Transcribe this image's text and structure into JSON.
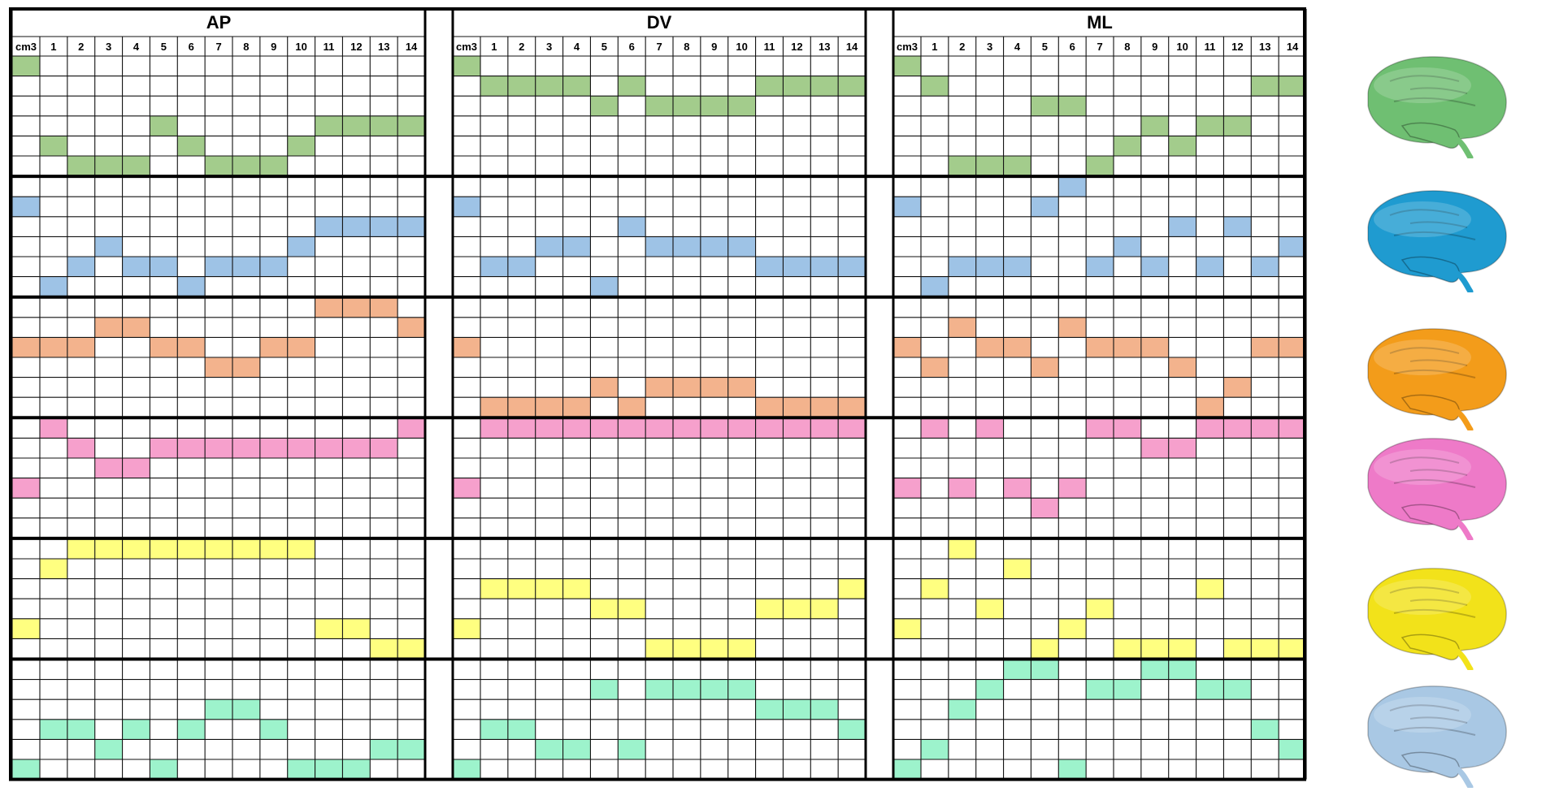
{
  "headers": [
    "AP",
    "DV",
    "ML"
  ],
  "column_labels": [
    "cm3",
    "1",
    "2",
    "3",
    "4",
    "5",
    "6",
    "7",
    "8",
    "9",
    "10",
    "11",
    "12",
    "13",
    "14"
  ],
  "groups": [
    {
      "name": "green",
      "color": "#a3cc8c",
      "brain_color": "#6fbf72",
      "panels": [
        [
          0,
          4,
          5,
          5,
          5,
          3,
          4,
          5,
          5,
          5,
          4,
          3,
          3,
          3,
          3
        ],
        [
          0,
          1,
          1,
          1,
          1,
          2,
          1,
          2,
          2,
          2,
          2,
          1,
          1,
          1,
          1
        ],
        [
          0,
          1,
          5,
          5,
          5,
          2,
          2,
          5,
          4,
          3,
          4,
          3,
          3,
          1,
          1
        ]
      ]
    },
    {
      "name": "blue",
      "color": "#9ec3e6",
      "brain_color": "#1f9bd0",
      "panels": [
        [
          1,
          5,
          4,
          3,
          4,
          4,
          5,
          4,
          4,
          4,
          3,
          2,
          2,
          2,
          2
        ],
        [
          1,
          4,
          4,
          3,
          3,
          5,
          2,
          3,
          3,
          3,
          3,
          4,
          4,
          4,
          4
        ],
        [
          1,
          5,
          4,
          4,
          4,
          1,
          0,
          4,
          3,
          4,
          2,
          4,
          2,
          4,
          3
        ]
      ]
    },
    {
      "name": "orange",
      "color": "#f3b38d",
      "brain_color": "#f39c1a",
      "panels": [
        [
          2,
          2,
          2,
          1,
          1,
          2,
          2,
          3,
          3,
          2,
          2,
          0,
          0,
          0,
          1
        ],
        [
          2,
          5,
          5,
          5,
          5,
          4,
          5,
          4,
          4,
          4,
          4,
          5,
          5,
          5,
          5
        ],
        [
          2,
          3,
          1,
          2,
          2,
          3,
          1,
          2,
          2,
          2,
          3,
          5,
          4,
          2,
          2
        ]
      ]
    },
    {
      "name": "pink",
      "color": "#f6a0cc",
      "brain_color": "#ee7ac8",
      "panels": [
        [
          3,
          0,
          1,
          2,
          2,
          1,
          1,
          1,
          1,
          1,
          1,
          1,
          1,
          1,
          0
        ],
        [
          3,
          0,
          0,
          0,
          0,
          0,
          0,
          0,
          0,
          0,
          0,
          0,
          0,
          0,
          0
        ],
        [
          3,
          0,
          3,
          0,
          3,
          4,
          3,
          0,
          0,
          1,
          1,
          0,
          0,
          0,
          0
        ]
      ]
    },
    {
      "name": "yellow",
      "color": "#ffff80",
      "brain_color": "#f2e21a",
      "panels": [
        [
          4,
          1,
          0,
          0,
          0,
          0,
          0,
          0,
          0,
          0,
          0,
          4,
          4,
          5,
          5
        ],
        [
          4,
          2,
          2,
          2,
          2,
          3,
          3,
          5,
          5,
          5,
          5,
          3,
          3,
          3,
          2
        ],
        [
          4,
          2,
          0,
          3,
          1,
          5,
          4,
          3,
          5,
          5,
          5,
          2,
          5,
          5,
          5
        ]
      ]
    },
    {
      "name": "teal",
      "color": "#9df3cc",
      "brain_color": "#a9c8e4",
      "panels": [
        [
          5,
          3,
          3,
          4,
          3,
          5,
          3,
          2,
          2,
          3,
          5,
          5,
          5,
          4,
          4
        ],
        [
          5,
          3,
          3,
          4,
          4,
          1,
          4,
          1,
          1,
          1,
          1,
          2,
          2,
          2,
          3
        ],
        [
          5,
          4,
          2,
          1,
          0,
          0,
          5,
          1,
          1,
          0,
          0,
          1,
          1,
          3,
          4
        ]
      ]
    }
  ]
}
